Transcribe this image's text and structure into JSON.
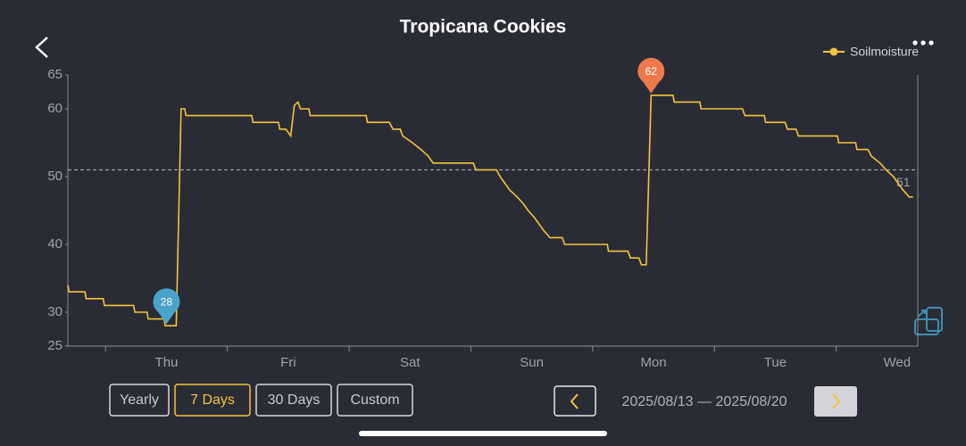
{
  "header": {
    "title": "Tropicana Cookies"
  },
  "chart_data": {
    "type": "line",
    "x": [
      0.19,
      0.2,
      0.33,
      0.34,
      0.48,
      0.49,
      0.73,
      0.74,
      0.84,
      0.85,
      0.98,
      0.99,
      1.08,
      1.12,
      1.15,
      1.16,
      1.7,
      1.71,
      1.92,
      1.93,
      1.98,
      2.02,
      2.05,
      2.08,
      2.1,
      2.17,
      2.18,
      2.64,
      2.65,
      2.83,
      2.86,
      2.92,
      2.94,
      3.02,
      3.09,
      3.15,
      3.19,
      3.52,
      3.54,
      3.71,
      3.74,
      3.78,
      3.82,
      3.88,
      3.93,
      3.97,
      4.02,
      4.06,
      4.1,
      4.15,
      4.25,
      4.27,
      4.62,
      4.63,
      4.79,
      4.81,
      4.88,
      4.9,
      4.94,
      4.98,
      5.16,
      5.17,
      5.38,
      5.39,
      5.73,
      5.75,
      5.91,
      5.92,
      6.08,
      6.1,
      6.17,
      6.19,
      6.51,
      6.52,
      6.66,
      6.67,
      6.76,
      6.79,
      6.86,
      6.91,
      6.97,
      7.01,
      7.05,
      7.1,
      7.13
    ],
    "series": [
      {
        "name": "Soilmoisture",
        "color": "#f2c43d",
        "values": [
          34,
          33,
          33,
          32,
          32,
          31,
          31,
          30,
          30,
          29,
          29,
          28,
          28,
          60,
          60,
          59,
          59,
          58,
          58,
          57,
          57,
          56,
          60.5,
          61,
          60,
          60,
          59,
          59,
          58,
          58,
          57,
          57,
          56,
          55,
          54,
          53,
          52,
          52,
          51,
          51,
          50,
          49,
          48,
          47,
          46,
          45,
          44,
          43,
          42,
          41,
          41,
          40,
          40,
          39,
          39,
          38,
          38,
          37,
          37,
          62,
          62,
          61,
          61,
          60,
          60,
          59,
          59,
          58,
          58,
          57,
          57,
          56,
          56,
          55,
          55,
          54,
          54,
          53,
          52,
          51,
          50,
          49,
          48,
          47,
          47
        ]
      }
    ],
    "xlim": [
      0.19,
      7.17
    ],
    "xticks": [
      {
        "value": 1,
        "label": "Thu"
      },
      {
        "value": 2,
        "label": "Fri"
      },
      {
        "value": 3,
        "label": "Sat"
      },
      {
        "value": 4,
        "label": "Sun"
      },
      {
        "value": 5,
        "label": "Mon"
      },
      {
        "value": 6,
        "label": "Tue"
      },
      {
        "value": 7,
        "label": "Wed"
      }
    ],
    "xminorticks": [
      0.5,
      1.5,
      2.5,
      3.5,
      4.5,
      5.5,
      6.5
    ],
    "ylim": [
      25,
      65
    ],
    "yticks": [
      25,
      30,
      40,
      50,
      60,
      65
    ],
    "threshold": 51,
    "annotations": [
      {
        "x": 1.0,
        "value": 28,
        "color": "#4aa3c9"
      },
      {
        "x": 4.98,
        "value": 62,
        "color": "#ee7a4c"
      }
    ],
    "legend": "top-right"
  },
  "controls": {
    "ranges": [
      "Yearly",
      "7 Days",
      "30 Days",
      "Custom"
    ],
    "selected_range": 1,
    "date_range": "2025/08/13 — 2025/08/20"
  }
}
